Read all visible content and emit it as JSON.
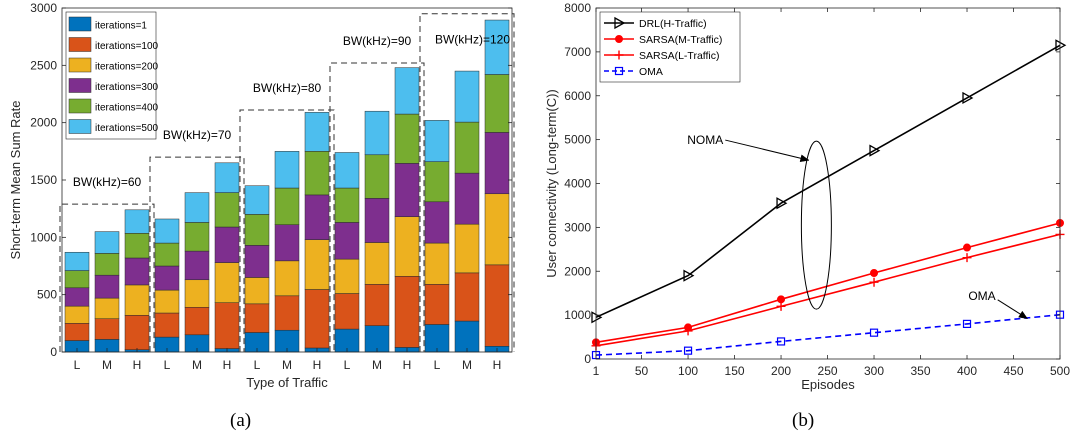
{
  "chart_data": [
    {
      "type": "bar",
      "stacked": true,
      "xlabel": "Type of Traffic",
      "ylabel": "Short-term Mean Sum Rate",
      "ylim": [
        0,
        3000
      ],
      "yticks": [
        0,
        500,
        1000,
        1500,
        2000,
        2500,
        3000
      ],
      "categories": [
        "L",
        "M",
        "H",
        "L",
        "M",
        "H",
        "L",
        "M",
        "H",
        "L",
        "M",
        "H",
        "L",
        "M",
        "H"
      ],
      "series": [
        {
          "name": "iterations=1",
          "color": "#0072BD",
          "values": [
            100,
            110,
            20,
            130,
            150,
            30,
            170,
            190,
            35,
            200,
            230,
            40,
            240,
            270,
            50
          ]
        },
        {
          "name": "iterations=100",
          "color": "#D95319",
          "values": [
            150,
            180,
            300,
            210,
            240,
            400,
            250,
            300,
            510,
            310,
            360,
            620,
            350,
            420,
            710
          ]
        },
        {
          "name": "iterations=200",
          "color": "#EDB120",
          "values": [
            150,
            180,
            265,
            200,
            240,
            350,
            230,
            305,
            435,
            300,
            365,
            520,
            360,
            425,
            620
          ]
        },
        {
          "name": "iterations=300",
          "color": "#7E2F8E",
          "values": [
            160,
            200,
            235,
            210,
            250,
            310,
            280,
            315,
            390,
            320,
            385,
            465,
            360,
            445,
            535
          ]
        },
        {
          "name": "iterations=400",
          "color": "#77AC30",
          "values": [
            150,
            190,
            215,
            200,
            250,
            300,
            270,
            320,
            380,
            300,
            380,
            430,
            350,
            445,
            505
          ]
        },
        {
          "name": "iterations=500",
          "color": "#4DBEEE",
          "values": [
            160,
            190,
            205,
            210,
            260,
            260,
            250,
            320,
            340,
            310,
            380,
            405,
            360,
            445,
            475
          ]
        }
      ],
      "groups": [
        {
          "label": "BW(kHz)=60",
          "value": 1290
        },
        {
          "label": "BW(kHz)=70",
          "value": 1700
        },
        {
          "label": "BW(kHz)=80",
          "value": 2110
        },
        {
          "label": "BW(kHz)=90",
          "value": 2520
        },
        {
          "label": "BW(kHz)=120",
          "value": 2950
        }
      ],
      "legend_position": "top-left",
      "grid": false,
      "caption": "(a)"
    },
    {
      "type": "line",
      "xlabel": "Episodes",
      "ylabel": "User connectivity (Long-term(C))",
      "xlim": [
        1,
        500
      ],
      "ylim": [
        0,
        8000
      ],
      "xticks": [
        1,
        50,
        100,
        150,
        200,
        250,
        300,
        350,
        400,
        450,
        500
      ],
      "yticks": [
        0,
        1000,
        2000,
        3000,
        4000,
        5000,
        6000,
        7000,
        8000
      ],
      "x": [
        1,
        100,
        200,
        300,
        400,
        500
      ],
      "series": [
        {
          "name": "DRL(H-Traffic)",
          "color": "#000000",
          "marker": "triangle-right",
          "dash": "solid",
          "values": [
            950,
            1900,
            3550,
            4750,
            5950,
            7150
          ]
        },
        {
          "name": "SARSA(M-Traffic)",
          "color": "#FF0000",
          "marker": "dot",
          "dash": "solid",
          "values": [
            380,
            720,
            1360,
            1960,
            2540,
            3100
          ]
        },
        {
          "name": "SARSA(L-Traffic)",
          "color": "#FF0000",
          "marker": "plus",
          "dash": "solid",
          "values": [
            300,
            640,
            1200,
            1750,
            2310,
            2840
          ]
        },
        {
          "name": "OMA",
          "color": "#0000FF",
          "marker": "square",
          "dash": "dashed",
          "values": [
            90,
            190,
            400,
            600,
            800,
            1010
          ]
        }
      ],
      "annotations": [
        {
          "text": "NOMA",
          "x": 115,
          "y": 5000
        },
        {
          "text": "OMA",
          "x": 415,
          "y": 1300
        }
      ],
      "legend_position": "top-left",
      "grid": false,
      "caption": "(b)"
    }
  ]
}
